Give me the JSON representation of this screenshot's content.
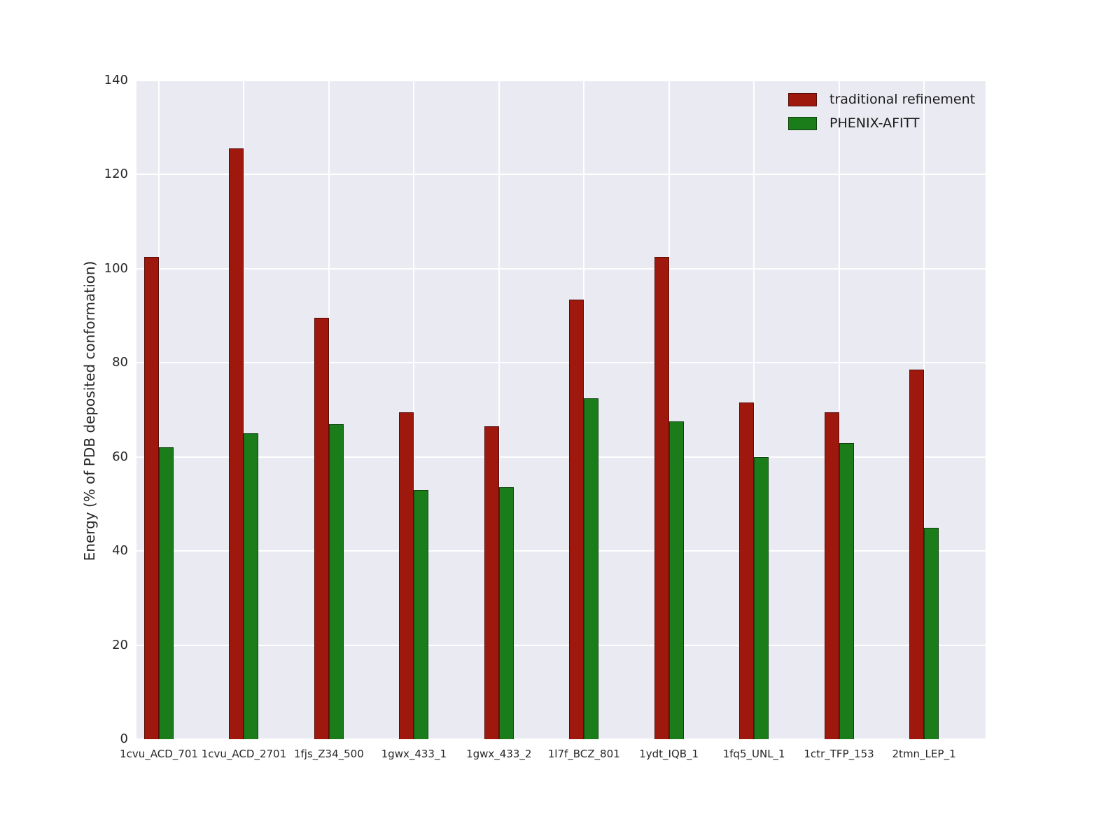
{
  "chart_data": {
    "type": "bar",
    "title": "",
    "xlabel": "",
    "ylabel": "Energy (% of PDB deposited conformation)",
    "ylim": [
      0,
      140
    ],
    "yticks": [
      0,
      20,
      40,
      60,
      80,
      100,
      120,
      140
    ],
    "grid": true,
    "legend_position": "upper right",
    "plot_background": "#eaeaf2",
    "grid_color": "#ffffff",
    "categories": [
      "1cvu_ACD_701",
      "1cvu_ACD_2701",
      "1fjs_Z34_500",
      "1gwx_433_1",
      "1gwx_433_2",
      "1l7f_BCZ_801",
      "1ydt_IQB_1",
      "1fq5_UNL_1",
      "1ctr_TFP_153",
      "2tmn_LEP_1"
    ],
    "series": [
      {
        "name": "traditional refinement",
        "color": "#9e180e",
        "values": [
          102.5,
          125.5,
          89.5,
          69.5,
          66.5,
          93.5,
          102.5,
          71.5,
          69.5,
          78.5
        ]
      },
      {
        "name": "PHENIX-AFITT",
        "color": "#1a7d1a",
        "values": [
          62,
          65,
          67,
          53,
          53.5,
          72.5,
          67.5,
          60,
          63,
          45
        ]
      }
    ]
  }
}
